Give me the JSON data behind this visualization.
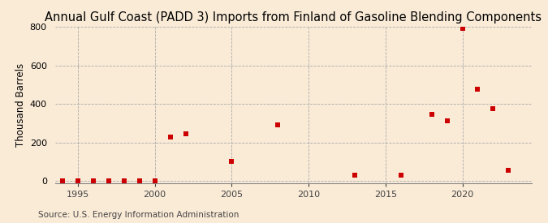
{
  "title": "Annual Gulf Coast (PADD 3) Imports from Finland of Gasoline Blending Components",
  "ylabel": "Thousand Barrels",
  "source": "Source: U.S. Energy Information Administration",
  "background_color": "#faebd7",
  "data": [
    {
      "year": 1994,
      "value": 0
    },
    {
      "year": 1995,
      "value": 0
    },
    {
      "year": 1996,
      "value": 0
    },
    {
      "year": 1997,
      "value": 0
    },
    {
      "year": 1998,
      "value": 0
    },
    {
      "year": 1999,
      "value": 0
    },
    {
      "year": 2000,
      "value": 0
    },
    {
      "year": 2001,
      "value": 229
    },
    {
      "year": 2002,
      "value": 245
    },
    {
      "year": 2005,
      "value": 100
    },
    {
      "year": 2008,
      "value": 290
    },
    {
      "year": 2013,
      "value": 30
    },
    {
      "year": 2016,
      "value": 30
    },
    {
      "year": 2018,
      "value": 345
    },
    {
      "year": 2019,
      "value": 310
    },
    {
      "year": 2020,
      "value": 790
    },
    {
      "year": 2021,
      "value": 475
    },
    {
      "year": 2022,
      "value": 375
    },
    {
      "year": 2023,
      "value": 55
    }
  ],
  "marker_color": "#cc0000",
  "marker_size": 4,
  "xlim": [
    1993.5,
    2024.5
  ],
  "ylim": [
    -10,
    800
  ],
  "yticks": [
    0,
    200,
    400,
    600,
    800
  ],
  "xticks": [
    1995,
    2000,
    2005,
    2010,
    2015,
    2020
  ],
  "vgrid_years": [
    1995,
    2000,
    2005,
    2010,
    2015,
    2020
  ],
  "title_fontsize": 10.5,
  "ylabel_fontsize": 8.5,
  "tick_fontsize": 8,
  "source_fontsize": 7.5
}
